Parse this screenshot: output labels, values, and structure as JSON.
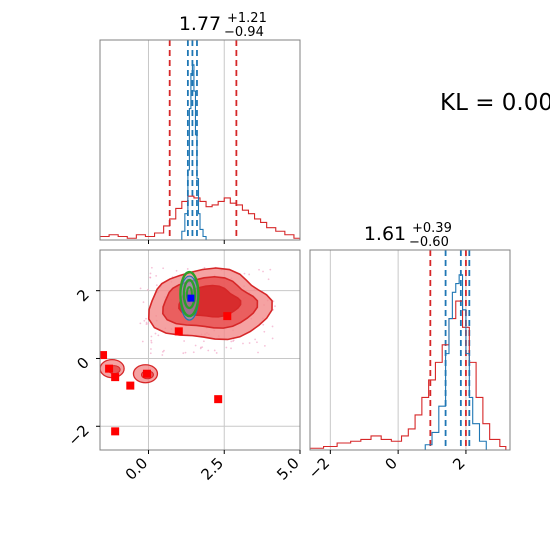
{
  "figure": {
    "kl_text": "KL = 0.00"
  },
  "colors": {
    "red": "#d62728",
    "blue": "#1f77b4",
    "green": "#2ca02c",
    "fill_red": "#e03a3a",
    "grid": "#c8c8c8"
  },
  "chart_data": [
    {
      "type": "histogram",
      "panel": "marginal-x",
      "title": {
        "main": "1.77",
        "plus": "+1.21",
        "minus": "−0.94"
      },
      "xlim": [
        -1.6,
        5.0
      ],
      "xticks": [
        0.0,
        2.5
      ],
      "series": [
        {
          "color": "#d62728",
          "x": [
            -1.6,
            -1.3,
            -1.0,
            -0.7,
            -0.4,
            -0.1,
            0.2,
            0.5,
            0.7,
            0.9,
            1.1,
            1.3,
            1.5,
            1.7,
            1.9,
            2.1,
            2.3,
            2.5,
            2.7,
            2.9,
            3.1,
            3.3,
            3.5,
            3.7,
            3.9,
            4.2,
            4.5,
            4.8
          ],
          "y": [
            0.02,
            0.03,
            0.02,
            0.01,
            0.03,
            0.02,
            0.04,
            0.08,
            0.12,
            0.18,
            0.22,
            0.25,
            0.24,
            0.22,
            0.19,
            0.2,
            0.22,
            0.24,
            0.21,
            0.2,
            0.17,
            0.15,
            0.12,
            0.1,
            0.07,
            0.05,
            0.03,
            0.01
          ]
        },
        {
          "color": "#1f77b4",
          "x": [
            1.0,
            1.1,
            1.2,
            1.3,
            1.35,
            1.4,
            1.45,
            1.5,
            1.55,
            1.6,
            1.65,
            1.7,
            1.8,
            1.9
          ],
          "y": [
            0.0,
            0.05,
            0.15,
            0.4,
            0.75,
            0.95,
            1.0,
            0.85,
            0.6,
            0.35,
            0.15,
            0.06,
            0.02,
            0.0
          ]
        }
      ],
      "red_dashed_lines": [
        0.7,
        2.9
      ],
      "blue_dashed_lines": [
        1.3,
        1.45,
        1.6
      ]
    },
    {
      "type": "histogram",
      "panel": "marginal-y",
      "title": {
        "main": "1.61",
        "plus": "+0.39",
        "minus": "−0.60"
      },
      "xlim": [
        -2.6,
        3.3
      ],
      "xticks": [
        -2,
        0,
        2
      ],
      "series": [
        {
          "color": "#d62728",
          "x": [
            -2.6,
            -2.2,
            -1.8,
            -1.4,
            -1.1,
            -0.8,
            -0.5,
            -0.2,
            0.1,
            0.3,
            0.5,
            0.7,
            0.9,
            1.1,
            1.3,
            1.5,
            1.7,
            1.9,
            2.1,
            2.3,
            2.5,
            2.7,
            3.0
          ],
          "y": [
            0.01,
            0.02,
            0.04,
            0.05,
            0.06,
            0.08,
            0.06,
            0.05,
            0.08,
            0.12,
            0.2,
            0.3,
            0.4,
            0.5,
            0.6,
            0.75,
            0.85,
            0.7,
            0.5,
            0.3,
            0.15,
            0.06,
            0.02
          ]
        },
        {
          "color": "#1f77b4",
          "x": [
            0.6,
            0.8,
            1.0,
            1.2,
            1.4,
            1.5,
            1.6,
            1.7,
            1.8,
            1.9,
            2.0,
            2.1,
            2.2,
            2.4,
            2.6
          ],
          "y": [
            0.0,
            0.03,
            0.1,
            0.25,
            0.55,
            0.75,
            0.9,
            0.95,
            1.0,
            0.8,
            0.55,
            0.3,
            0.15,
            0.05,
            0.0
          ]
        }
      ],
      "red_dashed_lines": [
        0.95,
        2.0
      ],
      "blue_dashed_lines": [
        1.4,
        1.85,
        2.1
      ]
    },
    {
      "type": "scatter",
      "panel": "joint",
      "xlim": [
        -1.6,
        5.0
      ],
      "ylim": [
        -2.7,
        3.2
      ],
      "xticks": [
        0.0,
        2.5,
        5.0
      ],
      "yticks": [
        -2,
        0,
        2
      ],
      "red_contour_center": [
        2.0,
        1.7
      ],
      "green_contour_center": [
        1.35,
        1.9
      ],
      "red_small_contours": [
        [
          -1.2,
          -0.3
        ],
        [
          -0.1,
          -0.45
        ]
      ],
      "red_squares": [
        {
          "x": -1.5,
          "y": 0.1
        },
        {
          "x": -1.3,
          "y": -0.3
        },
        {
          "x": -1.1,
          "y": -0.55
        },
        {
          "x": -0.6,
          "y": -0.8
        },
        {
          "x": -0.05,
          "y": -0.45
        },
        {
          "x": 1.0,
          "y": 0.8
        },
        {
          "x": 2.6,
          "y": 1.25
        },
        {
          "x": 2.3,
          "y": -1.2
        },
        {
          "x": -1.1,
          "y": -2.15
        }
      ],
      "blue_square": {
        "x": 1.4,
        "y": 1.78
      }
    }
  ]
}
